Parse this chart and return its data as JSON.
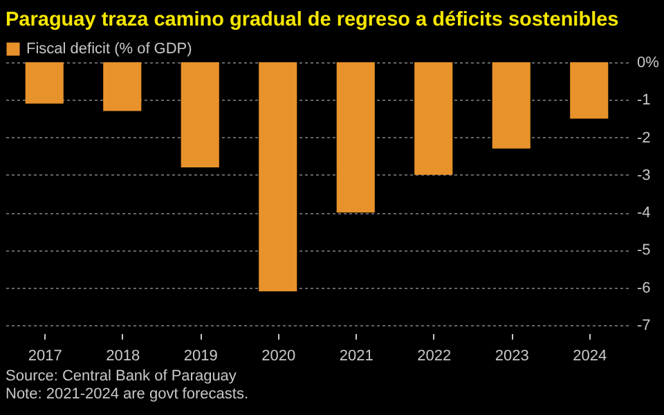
{
  "chart_data": {
    "type": "bar",
    "title": "Paraguay traza camino gradual de regreso a déficits sostenibles",
    "categories": [
      "2017",
      "2018",
      "2019",
      "2020",
      "2021",
      "2022",
      "2023",
      "2024"
    ],
    "series": [
      {
        "name": "Fiscal deficit (% of GDP)",
        "color": "#e8922b",
        "values": [
          -1.1,
          -1.3,
          -2.8,
          -6.1,
          -4.0,
          -3.0,
          -2.3,
          -1.5
        ]
      }
    ],
    "ylim": [
      -7,
      0
    ],
    "yticks": [
      {
        "value": 0,
        "label": "0%"
      },
      -1,
      -2,
      -3,
      -4,
      -5,
      -6,
      -7
    ],
    "grid": "y",
    "legend": "top left",
    "annotations": [
      "Source: Central Bank of Paraguay",
      "Note: 2021-2024 are govt forecasts."
    ]
  }
}
